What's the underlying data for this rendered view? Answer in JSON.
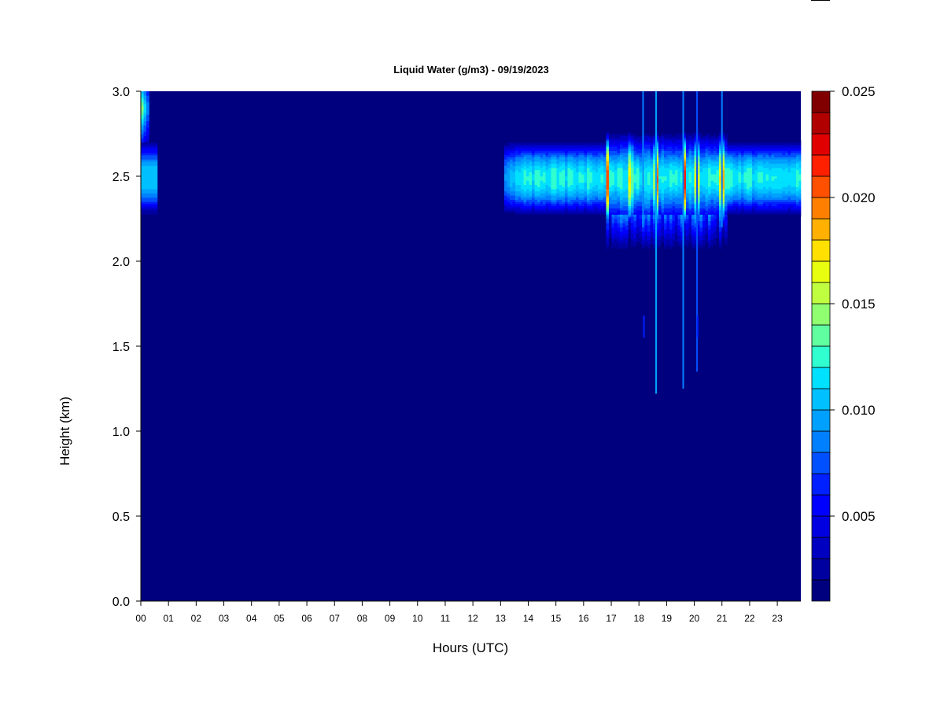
{
  "chart_data": {
    "type": "heatmap",
    "title": "Liquid Water (g/m3) - 09/19/2023",
    "xlabel": "Hours (UTC)",
    "ylabel": "Height (km)",
    "xlim": [
      0,
      23.85
    ],
    "ylim": [
      0,
      3.0
    ],
    "x_ticks": [
      "00",
      "01",
      "02",
      "03",
      "04",
      "05",
      "06",
      "07",
      "08",
      "09",
      "10",
      "11",
      "12",
      "13",
      "14",
      "15",
      "16",
      "17",
      "18",
      "19",
      "20",
      "21",
      "22",
      "23"
    ],
    "y_ticks": [
      "0.0",
      "0.5",
      "1.0",
      "1.5",
      "2.0",
      "2.5",
      "3.0"
    ],
    "colorbar": {
      "min": 0.001,
      "max": 0.025,
      "levels": 24,
      "ticks": [
        "0.005",
        "0.010",
        "0.015",
        "0.020",
        "0.025"
      ],
      "colors": [
        "#00007F",
        "#0000A0",
        "#0000C0",
        "#0000E0",
        "#0000FF",
        "#0020FF",
        "#0050FF",
        "#0080FF",
        "#00A0FF",
        "#00C0FF",
        "#00E0FF",
        "#30FFD0",
        "#60FFA0",
        "#90FF70",
        "#C0FF40",
        "#E8FF10",
        "#FFE000",
        "#FFB000",
        "#FF8000",
        "#FF5000",
        "#FF2000",
        "#E00000",
        "#B00000",
        "#800000"
      ]
    },
    "background_value": 0.0,
    "features": [
      {
        "name": "early cloud layer",
        "x_range": [
          0.0,
          0.62
        ],
        "height_center": 2.49,
        "height_half_width": 0.24,
        "peak": 0.011
      },
      {
        "name": "upper layer near 00 UTC",
        "x_range": [
          0.0,
          0.28
        ],
        "height_center": 2.9,
        "height_half_width": 0.2,
        "peak": 0.016
      },
      {
        "name": "afternoon cloud layer",
        "x_range": [
          13.1,
          23.85
        ],
        "height_center": 2.49,
        "height_half_width": 0.24,
        "peak": 0.013
      },
      {
        "name": "convective core",
        "x_range": [
          16.8,
          21.2
        ],
        "height_center": 2.48,
        "height_half_width": 0.3,
        "peak": 0.022
      }
    ],
    "spikes": [
      {
        "x": 18.15,
        "y_range": [
          2.2,
          3.0
        ],
        "value": 0.008
      },
      {
        "x": 18.62,
        "y_range": [
          1.22,
          3.0
        ],
        "value": 0.009
      },
      {
        "x": 19.6,
        "y_range": [
          1.25,
          3.0
        ],
        "value": 0.008
      },
      {
        "x": 20.1,
        "y_range": [
          1.35,
          3.0
        ],
        "value": 0.007
      },
      {
        "x": 21.0,
        "y_range": [
          2.2,
          3.0
        ],
        "value": 0.008
      },
      {
        "x": 18.18,
        "y_range": [
          1.55,
          1.68
        ],
        "value": 0.006
      },
      {
        "x": 20.12,
        "y_range": [
          1.55,
          1.68
        ],
        "value": 0.006
      }
    ]
  }
}
